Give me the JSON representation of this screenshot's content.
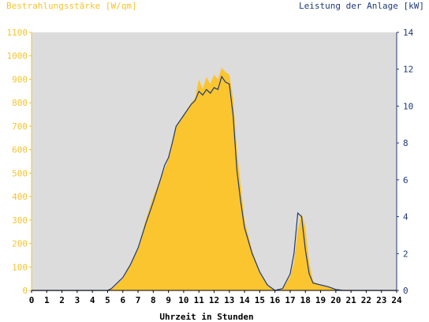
{
  "chart_data": {
    "type": "area",
    "title_left": "Bestrahlungsstärke [W/qm]",
    "title_right": "Leistung der Anlage [kW]",
    "xlabel": "Uhrzeit in Stunden",
    "xlim": [
      0,
      24
    ],
    "x_ticks": [
      "0",
      "1",
      "2",
      "3",
      "4",
      "5",
      "6",
      "7",
      "8",
      "9",
      "10",
      "11",
      "12",
      "13",
      "14",
      "15",
      "16",
      "17",
      "18",
      "19",
      "20",
      "21",
      "22",
      "23",
      "24"
    ],
    "y_left_lim": [
      0,
      1100
    ],
    "y_left_ticks": [
      "0",
      "100",
      "200",
      "300",
      "400",
      "500",
      "600",
      "700",
      "800",
      "900",
      "1000",
      "1100"
    ],
    "y_right_lim": [
      0,
      14
    ],
    "y_right_ticks": [
      "0",
      "2",
      "4",
      "6",
      "8",
      "10",
      "12",
      "14"
    ],
    "colors": {
      "irradiance": "#fbc530",
      "power": "#1e3a78",
      "plot_bg": "#dcdcdc",
      "left_axis": "#f5c32c",
      "right_axis": "#1e3a78"
    },
    "series": [
      {
        "name": "Bestrahlungsstärke [W/qm]",
        "axis": "left",
        "x": [
          0,
          5.0,
          5.25,
          5.5,
          6.0,
          6.5,
          7.0,
          7.5,
          8.0,
          8.5,
          9.0,
          9.25,
          9.5,
          10.0,
          10.5,
          10.75,
          11.0,
          11.25,
          11.5,
          11.75,
          12.0,
          12.25,
          12.5,
          12.75,
          13.0,
          13.25,
          13.5,
          13.75,
          14.0,
          14.5,
          15.0,
          15.5,
          16.0,
          16.5,
          17.0,
          17.25,
          17.5,
          17.75,
          18.0,
          18.25,
          18.5,
          19.0,
          19.5,
          20.0,
          20.5,
          24
        ],
        "y": [
          0,
          0,
          5,
          20,
          50,
          110,
          180,
          300,
          400,
          480,
          560,
          640,
          700,
          750,
          800,
          820,
          900,
          860,
          910,
          880,
          920,
          900,
          950,
          930,
          920,
          820,
          600,
          450,
          300,
          170,
          80,
          20,
          0,
          5,
          60,
          120,
          260,
          330,
          270,
          120,
          40,
          20,
          15,
          3,
          0,
          0
        ]
      },
      {
        "name": "Leistung der Anlage [kW]",
        "axis": "right",
        "x": [
          0,
          5.0,
          5.25,
          5.5,
          6.0,
          6.5,
          7.0,
          7.5,
          8.0,
          8.5,
          8.75,
          9.0,
          9.25,
          9.5,
          10.0,
          10.5,
          10.75,
          11.0,
          11.25,
          11.5,
          11.75,
          12.0,
          12.25,
          12.5,
          12.75,
          13.0,
          13.25,
          13.5,
          13.75,
          14.0,
          14.5,
          15.0,
          15.5,
          16.0,
          16.5,
          17.0,
          17.25,
          17.5,
          17.75,
          18.0,
          18.25,
          18.5,
          19.0,
          19.5,
          20.0,
          20.5,
          24
        ],
        "y": [
          0,
          0,
          0.1,
          0.3,
          0.7,
          1.4,
          2.3,
          3.6,
          4.8,
          6.1,
          6.8,
          7.2,
          8.0,
          8.9,
          9.5,
          10.1,
          10.3,
          10.8,
          10.6,
          10.9,
          10.7,
          11.0,
          10.9,
          11.6,
          11.3,
          11.2,
          9.5,
          6.5,
          4.8,
          3.4,
          2.0,
          1.0,
          0.3,
          0.0,
          0.1,
          0.9,
          2.0,
          4.2,
          4.0,
          2.2,
          0.9,
          0.4,
          0.3,
          0.2,
          0.05,
          0.0,
          0.0
        ]
      }
    ]
  }
}
